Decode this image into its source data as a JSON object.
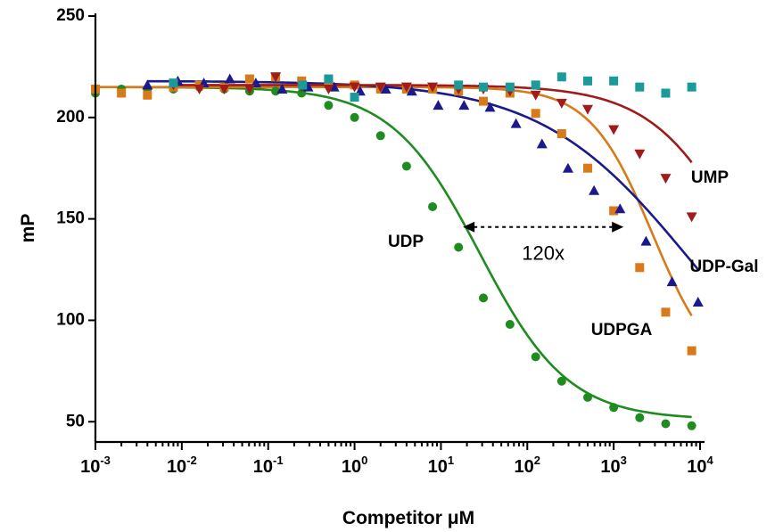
{
  "chart_data": {
    "type": "scatter",
    "xscale": "log",
    "xlabel": "Competitor μM",
    "ylabel": "mP",
    "xlim": [
      0.001,
      10000
    ],
    "ylim": [
      40,
      250
    ],
    "yticks": [
      50,
      100,
      150,
      200,
      250
    ],
    "xticks": [
      {
        "value": 0.001,
        "base": "10",
        "exp": "-3"
      },
      {
        "value": 0.01,
        "base": "10",
        "exp": "-2"
      },
      {
        "value": 0.1,
        "base": "10",
        "exp": "-1"
      },
      {
        "value": 1,
        "base": "10",
        "exp": "0"
      },
      {
        "value": 10,
        "base": "10",
        "exp": "1"
      },
      {
        "value": 100,
        "base": "10",
        "exp": "2"
      },
      {
        "value": 1000,
        "base": "10",
        "exp": "3"
      },
      {
        "value": 10000,
        "base": "10",
        "exp": "4"
      }
    ],
    "series": [
      {
        "name": "UDP",
        "color": "#1e8c1e",
        "marker": "circle",
        "fit": {
          "top": 215,
          "bottom": 51,
          "log_ic50": 1.45,
          "hill": 0.85
        },
        "points": [
          {
            "x": 0.001,
            "y": 212
          },
          {
            "x": 0.002,
            "y": 214
          },
          {
            "x": 0.004,
            "y": 214
          },
          {
            "x": 0.008,
            "y": 214
          },
          {
            "x": 0.016,
            "y": 215
          },
          {
            "x": 0.031,
            "y": 214
          },
          {
            "x": 0.061,
            "y": 213
          },
          {
            "x": 0.122,
            "y": 213
          },
          {
            "x": 0.244,
            "y": 212
          },
          {
            "x": 0.5,
            "y": 206
          },
          {
            "x": 1,
            "y": 200
          },
          {
            "x": 2,
            "y": 191
          },
          {
            "x": 4,
            "y": 176
          },
          {
            "x": 8,
            "y": 156
          },
          {
            "x": 16,
            "y": 136
          },
          {
            "x": 31,
            "y": 111
          },
          {
            "x": 63,
            "y": 98
          },
          {
            "x": 125,
            "y": 82
          },
          {
            "x": 250,
            "y": 70
          },
          {
            "x": 500,
            "y": 62
          },
          {
            "x": 1000,
            "y": 57
          },
          {
            "x": 2000,
            "y": 52
          },
          {
            "x": 4000,
            "y": 49
          },
          {
            "x": 8000,
            "y": 48
          }
        ]
      },
      {
        "name": "UDPGA",
        "color": "#d97a1a",
        "marker": "square",
        "fit": {
          "top": 215,
          "bottom": 70,
          "log_ic50": 3.45,
          "hill": 1.2
        },
        "points": [
          {
            "x": 0.001,
            "y": 214
          },
          {
            "x": 0.002,
            "y": 212
          },
          {
            "x": 0.004,
            "y": 211
          },
          {
            "x": 0.008,
            "y": 215
          },
          {
            "x": 0.016,
            "y": 216
          },
          {
            "x": 0.031,
            "y": 215
          },
          {
            "x": 0.061,
            "y": 219
          },
          {
            "x": 0.122,
            "y": 220
          },
          {
            "x": 0.244,
            "y": 218
          },
          {
            "x": 0.5,
            "y": 217
          },
          {
            "x": 1,
            "y": 216
          },
          {
            "x": 2,
            "y": 214
          },
          {
            "x": 4,
            "y": 214
          },
          {
            "x": 8,
            "y": 214
          },
          {
            "x": 16,
            "y": 213
          },
          {
            "x": 31,
            "y": 208
          },
          {
            "x": 63,
            "y": 212
          },
          {
            "x": 125,
            "y": 202
          },
          {
            "x": 250,
            "y": 192
          },
          {
            "x": 500,
            "y": 175
          },
          {
            "x": 1000,
            "y": 154
          },
          {
            "x": 2000,
            "y": 126
          },
          {
            "x": 4000,
            "y": 104
          },
          {
            "x": 8000,
            "y": 85
          }
        ]
      },
      {
        "name": "UDP-Gal",
        "color": "#1a1a8c",
        "marker": "triangle-up",
        "fit": {
          "top": 218,
          "bottom": 40,
          "log_ic50": 3.9,
          "hill": 0.5
        },
        "points": [
          {
            "x": 0.004,
            "y": 216
          },
          {
            "x": 0.009,
            "y": 218
          },
          {
            "x": 0.018,
            "y": 217
          },
          {
            "x": 0.036,
            "y": 219
          },
          {
            "x": 0.072,
            "y": 217
          },
          {
            "x": 0.145,
            "y": 214
          },
          {
            "x": 0.29,
            "y": 215
          },
          {
            "x": 0.58,
            "y": 215
          },
          {
            "x": 1.16,
            "y": 213
          },
          {
            "x": 2.3,
            "y": 214
          },
          {
            "x": 4.6,
            "y": 213
          },
          {
            "x": 9.3,
            "y": 206
          },
          {
            "x": 18.5,
            "y": 206
          },
          {
            "x": 37,
            "y": 205
          },
          {
            "x": 74,
            "y": 197
          },
          {
            "x": 148,
            "y": 187
          },
          {
            "x": 296,
            "y": 175
          },
          {
            "x": 592,
            "y": 164
          },
          {
            "x": 1185,
            "y": 155
          },
          {
            "x": 2370,
            "y": 139
          },
          {
            "x": 4740,
            "y": 119
          },
          {
            "x": 9480,
            "y": 109
          }
        ]
      },
      {
        "name": "UMP",
        "color": "#a01c1c",
        "marker": "triangle-down",
        "fit": {
          "top": 216,
          "bottom": 40,
          "log_ic50": 4.6,
          "hill": 0.8
        },
        "points": [
          {
            "x": 0.008,
            "y": 216
          },
          {
            "x": 0.016,
            "y": 214
          },
          {
            "x": 0.031,
            "y": 214
          },
          {
            "x": 0.061,
            "y": 214
          },
          {
            "x": 0.122,
            "y": 220
          },
          {
            "x": 0.244,
            "y": 215
          },
          {
            "x": 0.5,
            "y": 214
          },
          {
            "x": 1,
            "y": 215
          },
          {
            "x": 2,
            "y": 215
          },
          {
            "x": 4,
            "y": 215
          },
          {
            "x": 8,
            "y": 215
          },
          {
            "x": 16,
            "y": 214
          },
          {
            "x": 31,
            "y": 214
          },
          {
            "x": 63,
            "y": 213
          },
          {
            "x": 125,
            "y": 211
          },
          {
            "x": 250,
            "y": 207
          },
          {
            "x": 500,
            "y": 204
          },
          {
            "x": 1000,
            "y": 194
          },
          {
            "x": 2000,
            "y": 182
          },
          {
            "x": 4000,
            "y": 170
          },
          {
            "x": 8000,
            "y": 151
          }
        ]
      },
      {
        "name": "",
        "color": "#1a9a9a",
        "marker": "square",
        "fit": null,
        "points": [
          {
            "x": 0.008,
            "y": 217
          },
          {
            "x": 0.25,
            "y": 216
          },
          {
            "x": 0.5,
            "y": 219
          },
          {
            "x": 1,
            "y": 210
          },
          {
            "x": 16,
            "y": 216
          },
          {
            "x": 31,
            "y": 215
          },
          {
            "x": 63,
            "y": 215
          },
          {
            "x": 125,
            "y": 216
          },
          {
            "x": 250,
            "y": 220
          },
          {
            "x": 500,
            "y": 218
          },
          {
            "x": 1000,
            "y": 218
          },
          {
            "x": 2000,
            "y": 215
          },
          {
            "x": 4000,
            "y": 212
          },
          {
            "x": 8000,
            "y": 215
          }
        ]
      }
    ],
    "series_labels": [
      {
        "text": "UDP",
        "series": 0
      },
      {
        "text": "UDPGA",
        "series": 1
      },
      {
        "text": "UDP-Gal",
        "series": 2
      },
      {
        "text": "UMP",
        "series": 3
      }
    ],
    "annotations": [
      {
        "text": "120x",
        "type": "double-arrow",
        "x_from": 18,
        "x_to": 1300,
        "y": 146
      }
    ]
  }
}
